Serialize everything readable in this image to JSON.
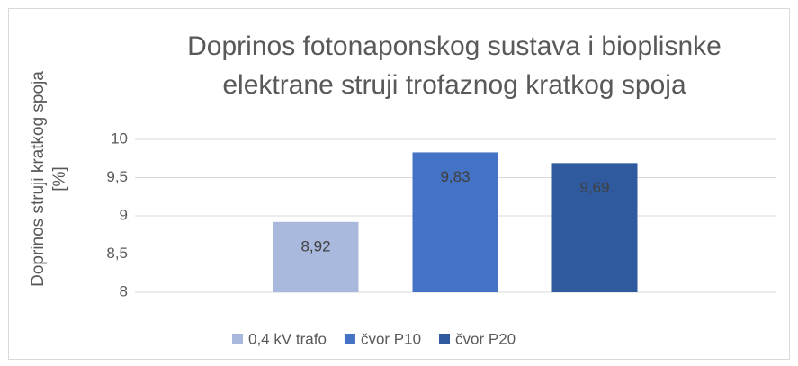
{
  "chart_data": {
    "type": "bar",
    "title": "Doprinos fotonaponskog sustava i bioplisnke elektrane struji trofaznog kratkog spoja",
    "y_label": "Doprinos struji kratkog spoja [%]",
    "categories": [
      null
    ],
    "series": [
      {
        "name": "0,4 kV trafo",
        "color": "#a9b9de",
        "values": [
          8.92
        ],
        "value_labels": [
          "8,92"
        ]
      },
      {
        "name": "čvor P10",
        "color": "#4472c4",
        "values": [
          9.83
        ],
        "value_labels": [
          "9,83"
        ]
      },
      {
        "name": "čvor P20",
        "color": "#2f5a9e",
        "values": [
          9.69
        ],
        "value_labels": [
          "9,69"
        ]
      }
    ],
    "ylim": [
      8,
      10
    ],
    "yticks": [
      8,
      {
        "value": 8.5,
        "label": "8,5"
      },
      9,
      {
        "value": 9.5,
        "label": "9,5"
      },
      10
    ],
    "grid": true,
    "legend": "bottom"
  }
}
